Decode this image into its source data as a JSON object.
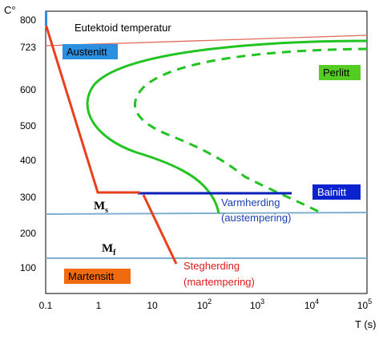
{
  "axes": {
    "y_unit": "C°",
    "x_unit": "T (s)",
    "y_ticks": [
      "800",
      "723",
      "600",
      "500",
      "400",
      "300",
      "200",
      "100"
    ],
    "x_ticks": [
      {
        "base": "0.1",
        "exp": ""
      },
      {
        "base": "1",
        "exp": ""
      },
      {
        "base": "10",
        "exp": ""
      },
      {
        "base": "10",
        "exp": "2"
      },
      {
        "base": "10",
        "exp": "3"
      },
      {
        "base": "10",
        "exp": "4"
      },
      {
        "base": "10",
        "exp": "5"
      }
    ]
  },
  "labels": {
    "eutektoid": "Eutektoid temperatur",
    "ms_main": "M",
    "ms_sub": "s",
    "mf_main": "M",
    "mf_sub": "f",
    "austenitt": "Austenitt",
    "perlitt": "Perlitt",
    "bainitt": "Bainitt",
    "martensitt": "Martensitt",
    "varmherding_1": "Varmherding",
    "varmherding_2": "(austempering)",
    "stegherding_1": "Stegherding",
    "stegherding_2": "(martempering)"
  },
  "colors": {
    "eutektoid_line": "#e06a5a",
    "ms_mf_lines": "#7fb0d0",
    "cooling_curve": "#e8401c",
    "transformation_curves": "#22c422",
    "austempering_line": "#0a1fb8",
    "austenitt_box": "#2d8fe0",
    "perlitt_box": "#55cc22",
    "bainitt_box": "#0a22d0",
    "martensitt_box": "#f06a10",
    "varmherding_text": "#1a3fb8",
    "stegherding_text": "#e01a1a"
  }
}
